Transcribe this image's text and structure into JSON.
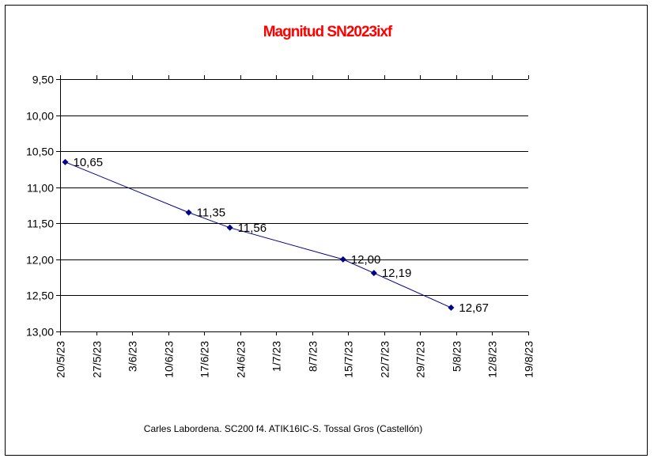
{
  "chart_data": {
    "type": "line",
    "title": "Magnitud SN2023ixf",
    "footer": "Carles Labordena. SC200 f4. ATIK16IC-S. Tossal Gros (Castellón)",
    "y_reversed": true,
    "ylim": [
      9.5,
      13.0
    ],
    "y_ticks": [
      "9,50",
      "10,00",
      "10,50",
      "11,00",
      "11,50",
      "12,00",
      "12,50",
      "13,00"
    ],
    "y_tick_values": [
      9.5,
      10.0,
      10.5,
      11.0,
      11.5,
      12.0,
      12.5,
      13.0
    ],
    "x_ticks": [
      "20/5/23",
      "27/5/23",
      "3/6/23",
      "10/6/23",
      "17/6/23",
      "24/6/23",
      "1/7/23",
      "8/7/23",
      "15/7/23",
      "22/7/23",
      "29/7/23",
      "5/8/23",
      "12/8/23",
      "19/8/23"
    ],
    "x_tick_dates": [
      "2023-05-20",
      "2023-05-27",
      "2023-06-03",
      "2023-06-10",
      "2023-06-17",
      "2023-06-24",
      "2023-07-01",
      "2023-07-08",
      "2023-07-15",
      "2023-07-22",
      "2023-07-29",
      "2023-08-05",
      "2023-08-12",
      "2023-08-19"
    ],
    "xlim": [
      "2023-05-20",
      "2023-08-19"
    ],
    "grid": "horizontal",
    "series": [
      {
        "points": [
          {
            "x": "2023-05-21",
            "y": 10.65,
            "label": "10,65"
          },
          {
            "x": "2023-06-14",
            "y": 11.35,
            "label": "11,35"
          },
          {
            "x": "2023-06-22",
            "y": 11.56,
            "label": "11,56"
          },
          {
            "x": "2023-07-14",
            "y": 12.0,
            "label": "12,00"
          },
          {
            "x": "2023-07-20",
            "y": 12.19,
            "label": "12,19"
          },
          {
            "x": "2023-08-04",
            "y": 12.67,
            "label": "12,67"
          }
        ]
      }
    ],
    "colors": {
      "title": "#ff0000",
      "line": "#00008b",
      "marker": "#00008b",
      "grid": "#000000"
    }
  }
}
